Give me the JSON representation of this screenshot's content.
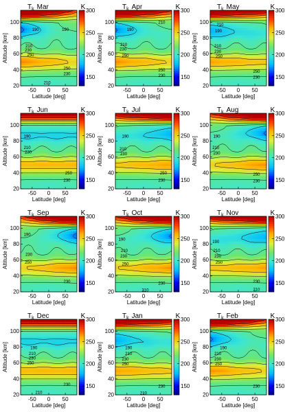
{
  "chart_data": {
    "type": "heatmap",
    "symbol": "T",
    "subscript": "k",
    "unit": "K",
    "xlabel": "Latitude [deg]",
    "ylabel": "Altitude [km]",
    "xlim": [
      -85,
      85
    ],
    "ylim": [
      20,
      115
    ],
    "xticks": [
      "-50",
      "0",
      "50"
    ],
    "yticks": [
      "20",
      "40",
      "60",
      "80",
      "100"
    ],
    "colorbar": {
      "min": 130,
      "max": 300,
      "ticks": [
        "150",
        "200",
        "250",
        "300"
      ]
    },
    "panels": [
      {
        "month": "Mar",
        "contour_labels": [
          {
            "text": "190",
            "lat": -40,
            "alt": 91
          },
          {
            "text": "190",
            "lat": 50,
            "alt": 91
          },
          {
            "text": "210",
            "lat": -60,
            "alt": 70
          },
          {
            "text": "230",
            "lat": -62,
            "alt": 65
          },
          {
            "text": "250",
            "lat": -55,
            "alt": 59
          },
          {
            "text": "250",
            "lat": 55,
            "alt": 42
          },
          {
            "text": "230",
            "lat": 55,
            "alt": 35
          },
          {
            "text": "210",
            "lat": -5,
            "alt": 24
          }
        ]
      },
      {
        "month": "Apr",
        "contour_labels": [
          {
            "text": "210",
            "lat": 55,
            "alt": 100
          },
          {
            "text": "190",
            "lat": -40,
            "alt": 91
          },
          {
            "text": "210",
            "lat": -60,
            "alt": 72
          },
          {
            "text": "230",
            "lat": -62,
            "alt": 66
          },
          {
            "text": "250",
            "lat": -55,
            "alt": 58
          },
          {
            "text": "250",
            "lat": 55,
            "alt": 40
          },
          {
            "text": "230",
            "lat": 55,
            "alt": 33
          }
        ]
      },
      {
        "month": "May",
        "contour_labels": [
          {
            "text": "210",
            "lat": -55,
            "alt": 97
          },
          {
            "text": "190",
            "lat": -60,
            "alt": 89
          },
          {
            "text": "210",
            "lat": -62,
            "alt": 70
          },
          {
            "text": "230",
            "lat": -62,
            "alt": 63
          },
          {
            "text": "250",
            "lat": -58,
            "alt": 57
          },
          {
            "text": "250",
            "lat": 55,
            "alt": 38
          },
          {
            "text": "230",
            "lat": 55,
            "alt": 31
          }
        ]
      },
      {
        "month": "Jun",
        "contour_labels": [
          {
            "text": "190",
            "lat": -65,
            "alt": 86
          },
          {
            "text": "210",
            "lat": -65,
            "alt": 72
          },
          {
            "text": "230",
            "lat": -62,
            "alt": 66
          },
          {
            "text": "250",
            "lat": 60,
            "alt": 40
          },
          {
            "text": "230",
            "lat": 55,
            "alt": 31
          }
        ]
      },
      {
        "month": "Jul",
        "contour_labels": [
          {
            "text": "190",
            "lat": -55,
            "alt": 86
          },
          {
            "text": "210",
            "lat": -62,
            "alt": 70
          },
          {
            "text": "230",
            "lat": -60,
            "alt": 64
          },
          {
            "text": "250",
            "lat": 60,
            "alt": 40
          },
          {
            "text": "230",
            "lat": 55,
            "alt": 31
          }
        ]
      },
      {
        "month": "Aug",
        "contour_labels": [
          {
            "text": "190",
            "lat": -65,
            "alt": 86
          },
          {
            "text": "210",
            "lat": -68,
            "alt": 72
          },
          {
            "text": "230",
            "lat": -65,
            "alt": 65
          },
          {
            "text": "250",
            "lat": 55,
            "alt": 38
          },
          {
            "text": "230",
            "lat": 55,
            "alt": 30
          }
        ]
      },
      {
        "month": "Sep",
        "contour_labels": [
          {
            "text": "190",
            "lat": -65,
            "alt": 92
          },
          {
            "text": "230",
            "lat": -60,
            "alt": 67
          },
          {
            "text": "250",
            "lat": -62,
            "alt": 57
          },
          {
            "text": "230",
            "lat": 55,
            "alt": 33
          }
        ]
      },
      {
        "month": "Oct",
        "contour_labels": [
          {
            "text": "190",
            "lat": -65,
            "alt": 86
          },
          {
            "text": "210",
            "lat": -58,
            "alt": 72
          },
          {
            "text": "230",
            "lat": -60,
            "alt": 65
          },
          {
            "text": "250",
            "lat": -55,
            "alt": 55
          },
          {
            "text": "230",
            "lat": 55,
            "alt": 31
          },
          {
            "text": "210",
            "lat": 5,
            "alt": 22
          }
        ]
      },
      {
        "month": "Nov",
        "contour_labels": [
          {
            "text": "190",
            "lat": -68,
            "alt": 83
          },
          {
            "text": "210",
            "lat": -65,
            "alt": 72
          },
          {
            "text": "230",
            "lat": -62,
            "alt": 65
          },
          {
            "text": "250",
            "lat": -58,
            "alt": 57
          },
          {
            "text": "230",
            "lat": 55,
            "alt": 33
          },
          {
            "text": "210",
            "lat": 55,
            "alt": 23
          }
        ]
      },
      {
        "month": "Dec",
        "contour_labels": [
          {
            "text": "190",
            "lat": -45,
            "alt": 79
          },
          {
            "text": "210",
            "lat": -50,
            "alt": 72
          },
          {
            "text": "230",
            "lat": -50,
            "alt": 66
          },
          {
            "text": "250",
            "lat": -55,
            "alt": 60
          },
          {
            "text": "230",
            "lat": 55,
            "alt": 33
          },
          {
            "text": "210",
            "lat": -30,
            "alt": 23
          }
        ]
      },
      {
        "month": "Jan",
        "contour_labels": [
          {
            "text": "190",
            "lat": -45,
            "alt": 79
          },
          {
            "text": "210",
            "lat": -45,
            "alt": 72
          },
          {
            "text": "230",
            "lat": -55,
            "alt": 65
          },
          {
            "text": "250",
            "lat": -55,
            "alt": 59
          },
          {
            "text": "230",
            "lat": 55,
            "alt": 31
          },
          {
            "text": "210",
            "lat": 0,
            "alt": 22
          }
        ]
      },
      {
        "month": "Feb",
        "contour_labels": [
          {
            "text": "190",
            "lat": -45,
            "alt": 79
          },
          {
            "text": "210",
            "lat": -62,
            "alt": 72
          },
          {
            "text": "230",
            "lat": -62,
            "alt": 65
          },
          {
            "text": "250",
            "lat": -60,
            "alt": 59
          },
          {
            "text": "230",
            "lat": 55,
            "alt": 31
          }
        ]
      }
    ]
  }
}
